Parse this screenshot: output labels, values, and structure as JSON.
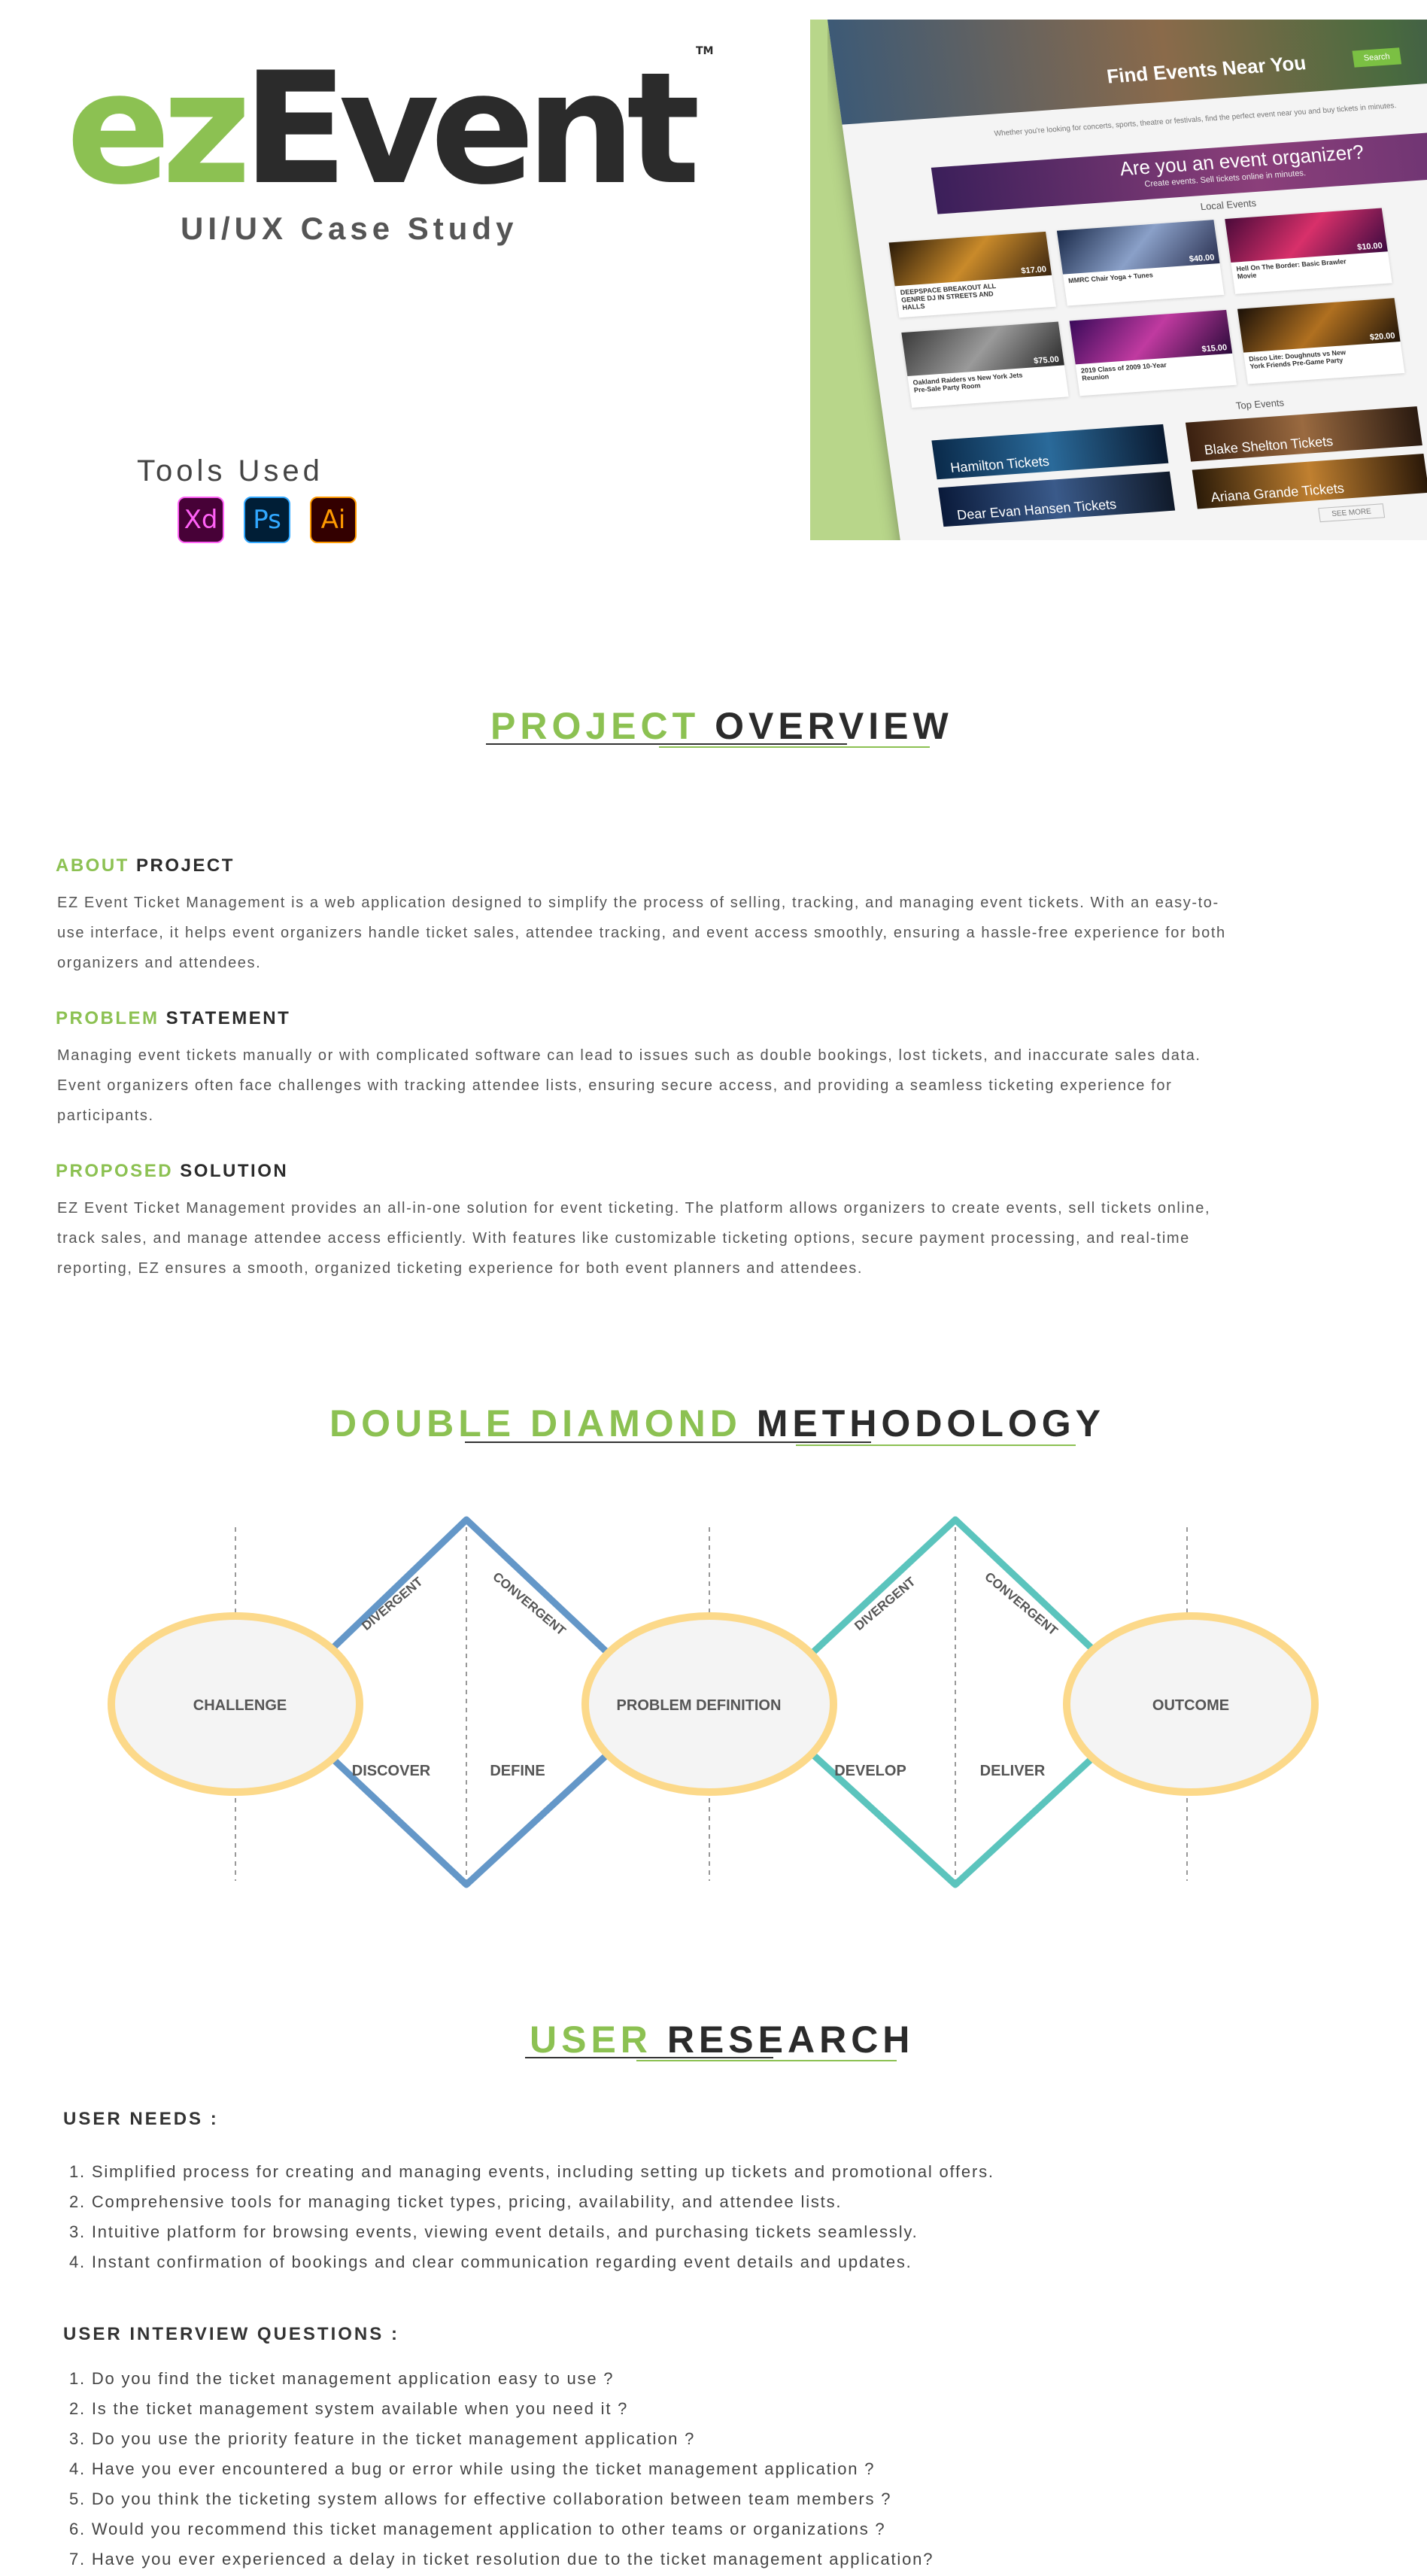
{
  "hero": {
    "logo_green": "ez",
    "logo_dark": "Event",
    "logo_tm": "TM",
    "subtitle": "UI/UX Case Study",
    "tools_label": "Tools Used",
    "tools": [
      {
        "label": "Xd",
        "icon": "adobe-xd-icon",
        "color": "#ff61f6"
      },
      {
        "label": "Ps",
        "icon": "adobe-photoshop-icon",
        "color": "#31a8ff"
      },
      {
        "label": "Ai",
        "icon": "adobe-illustrator-icon",
        "color": "#ff9a00"
      }
    ]
  },
  "mockup": {
    "hero_title": "Find Events Near You",
    "hero_button": "Search",
    "intro": "Whether you're looking for concerts, sports, theatre or festivals, find the perfect event near you and buy tickets in minutes.",
    "banner_title": "Are you an event organizer?",
    "banner_sub": "Create events. Sell tickets online in minutes.",
    "local_label": "Local Events",
    "local_events": [
      {
        "name": "DEEPSPACE BREAKOUT ALL GENRE DJ IN STREETS AND HALLS",
        "price": "$17.00"
      },
      {
        "name": "MMRC Chair Yoga + Tunes",
        "price": "$40.00"
      },
      {
        "name": "Hell On The Border: Basic Brawler Movie",
        "price": "$10.00"
      },
      {
        "name": "Oakland Raiders vs New York Jets Pre-Sale Party Room",
        "price": "$75.00"
      },
      {
        "name": "2019 Class of 2009 10-Year Reunion",
        "price": "$15.00"
      },
      {
        "name": "Disco Lite: Doughnuts vs New York Friends Pre-Game Party",
        "price": "$20.00"
      }
    ],
    "top_label": "Top Events",
    "top_events": [
      "Hamilton Tickets",
      "Blake Shelton Tickets",
      "Dear Evan Hansen Tickets",
      "Ariana Grande Tickets"
    ],
    "more_button": "SEE MORE"
  },
  "overview": {
    "title_green": "PROJECT",
    "title_dark": "OVERVIEW",
    "sections": [
      {
        "head_green": "ABOUT",
        "head_dark": "PROJECT",
        "lines": [
          "EZ Event Ticket Management is a web application designed to simplify the process of selling, tracking, and managing event tickets. With an easy-to-",
          "use interface, it helps event organizers handle ticket sales, attendee tracking, and event access smoothly, ensuring a hassle-free experience for both",
          "organizers and attendees."
        ]
      },
      {
        "head_green": "PROBLEM",
        "head_dark": "STATEMENT",
        "lines": [
          "Managing event tickets manually or with complicated software can lead to issues such as double bookings, lost tickets, and inaccurate sales data.",
          "Event organizers often face challenges with tracking attendee lists, ensuring secure access, and providing a seamless ticketing experience for",
          "participants."
        ]
      },
      {
        "head_green": "PROPOSED",
        "head_dark": "SOLUTION",
        "lines": [
          "EZ Event Ticket Management provides an all-in-one solution for event ticketing. The platform allows organizers to create events, sell tickets online,",
          "track sales, and manage attendee access efficiently. With features like customizable ticketing options, secure payment processing, and real-time",
          "reporting, EZ ensures a smooth, organized ticketing experience for both event planners and attendees."
        ]
      }
    ]
  },
  "methodology": {
    "title_green": "DOUBLE DIAMOND",
    "title_dark": "METHODOLOGY",
    "circles": [
      "CHALLENGE",
      "PROBLEM DEFINITION",
      "OUTCOME"
    ],
    "diagonal_labels": [
      "DIVERGENT",
      "CONVERGENT",
      "DIVERGENT",
      "CONVERGENT"
    ],
    "phases": [
      "DISCOVER",
      "DEFINE",
      "DEVELOP",
      "DELIVER"
    ],
    "colors": {
      "diamond_1": "#6497c8",
      "diamond_2": "#5bc4bd",
      "circle_stroke": "#fcd98a",
      "circle_fill": "#f4f4f4"
    }
  },
  "research": {
    "title_green": "USER",
    "title_dark": "RESEARCH",
    "needs_head": "USER NEEDS :",
    "needs": [
      "1. Simplified process for creating and managing events, including setting up tickets and promotional offers.",
      "2. Comprehensive tools for managing ticket types, pricing, availability, and attendee lists.",
      "3. Intuitive platform for browsing events, viewing event details, and purchasing tickets seamlessly.",
      "4. Instant confirmation of bookings and clear communication regarding event details and updates."
    ],
    "questions_head": "USER INTERVIEW QUESTIONS :",
    "questions": [
      "1. Do you find the ticket management application easy to use ?",
      "2. Is the ticket management system available when you need it ?",
      "3. Do you use the priority feature in the ticket management application ?",
      "4. Have you ever encountered a bug or error while using the ticket management application ?",
      "5. Do you think the ticketing system allows for effective collaboration between team members ?",
      "6. Would you recommend this ticket management application to other teams or organizations ?",
      "7. Have you ever experienced a delay in ticket resolution due to the ticket management application?"
    ]
  },
  "colors": {
    "accent": "#8cc152",
    "dark": "#2b2b2b",
    "body_text": "#555555"
  }
}
